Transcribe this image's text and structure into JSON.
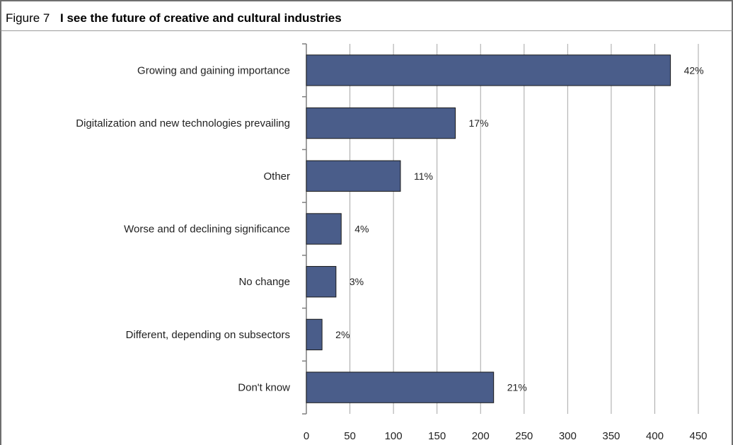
{
  "figure": {
    "label": "Figure 7",
    "title": "I see the future of creative and cultural industries"
  },
  "colors": {
    "bar_fill": "#4a5d8a",
    "bar_stroke": "#1a1a1a",
    "grid": "#a6a6a6",
    "axis": "#7f7f7f"
  },
  "chart_data": {
    "type": "bar",
    "orientation": "horizontal",
    "title": "I see the future of creative and cultural industries",
    "categories": [
      "Growing and gaining importance",
      "Digitalization and new technologies prevailing",
      "Other",
      "Worse and of declining significance",
      "No change",
      "Different, depending on subsectors",
      "Don't know"
    ],
    "values": [
      418,
      171,
      108,
      40,
      34,
      18,
      215
    ],
    "data_labels": [
      "42%",
      "17%",
      "11%",
      "4%",
      "3%",
      "2%",
      "21%"
    ],
    "xlim": [
      0,
      450
    ],
    "x_ticks": [
      0,
      50,
      100,
      150,
      200,
      250,
      300,
      350,
      400,
      450
    ],
    "xlabel": "",
    "ylabel": "",
    "grid": "vertical",
    "legend": "none"
  }
}
